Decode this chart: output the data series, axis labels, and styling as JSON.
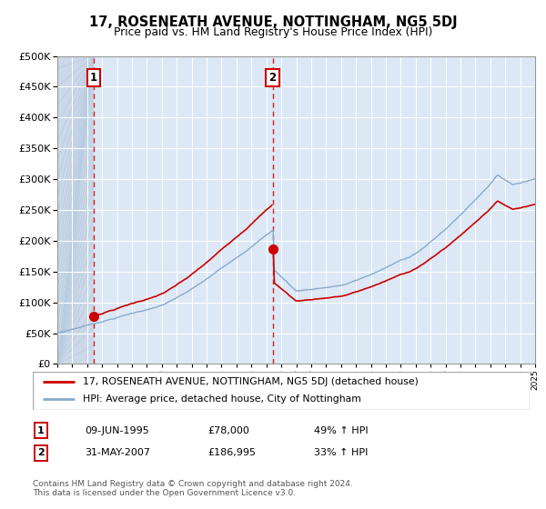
{
  "title": "17, ROSENEATH AVENUE, NOTTINGHAM, NG5 5DJ",
  "subtitle": "Price paid vs. HM Land Registry's House Price Index (HPI)",
  "legend_line1": "17, ROSENEATH AVENUE, NOTTINGHAM, NG5 5DJ (detached house)",
  "legend_line2": "HPI: Average price, detached house, City of Nottingham",
  "annotation1_date": "09-JUN-1995",
  "annotation1_price": "£78,000",
  "annotation1_hpi": "49% ↑ HPI",
  "annotation2_date": "31-MAY-2007",
  "annotation2_price": "£186,995",
  "annotation2_hpi": "33% ↑ HPI",
  "footer": "Contains HM Land Registry data © Crown copyright and database right 2024.\nThis data is licensed under the Open Government Licence v3.0.",
  "ylim": [
    0,
    500000
  ],
  "yticks": [
    0,
    50000,
    100000,
    150000,
    200000,
    250000,
    300000,
    350000,
    400000,
    450000,
    500000
  ],
  "property_color": "#cc0000",
  "hpi_color": "#88aacc",
  "sale1_x": 1995.44,
  "sale1_y": 78000,
  "sale2_x": 2007.42,
  "sale2_y": 186995,
  "xmin": 1993,
  "xmax": 2025
}
